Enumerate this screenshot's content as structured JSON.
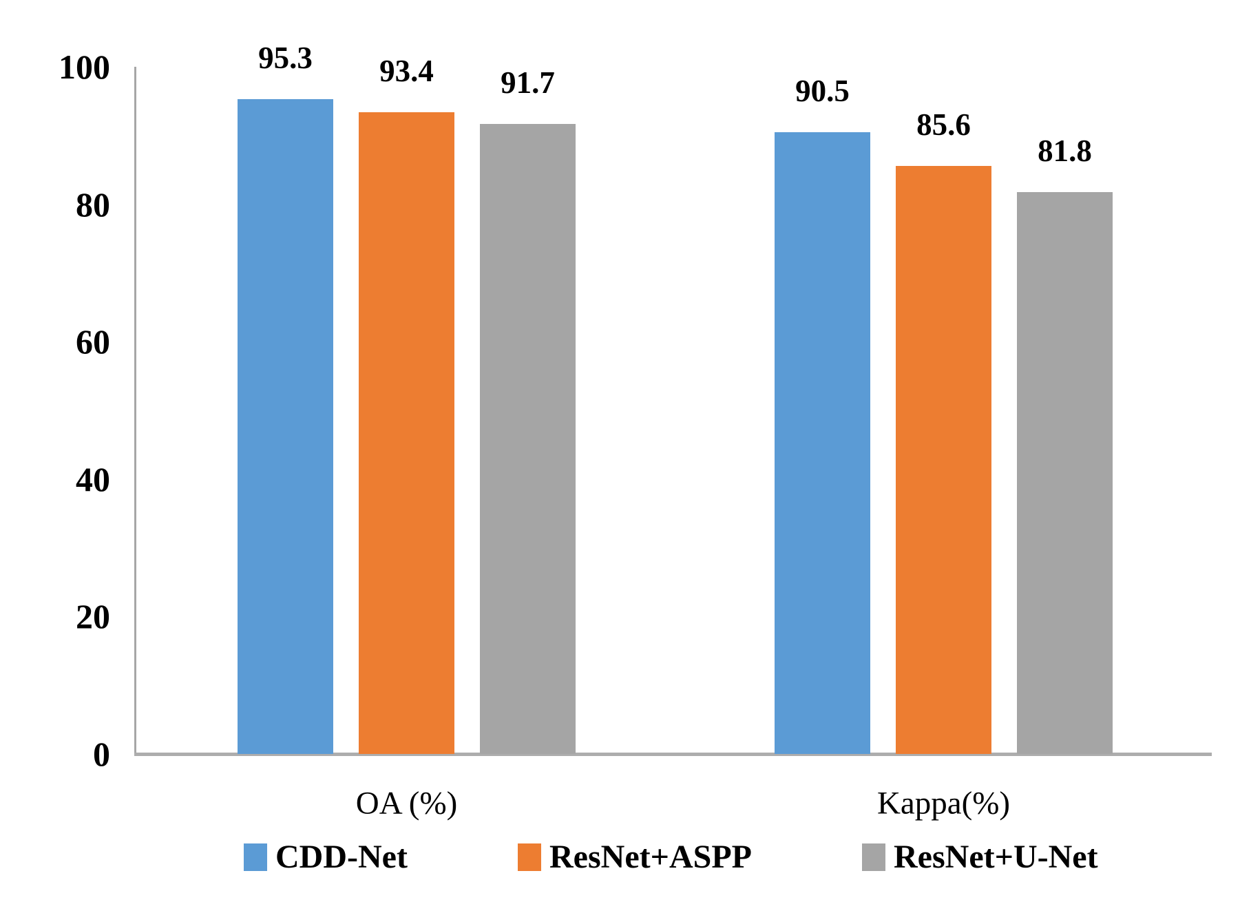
{
  "chart_data": {
    "type": "bar",
    "title": "",
    "categories": [
      "OA (%)",
      "Kappa(%)"
    ],
    "series": [
      {
        "name": "CDD-Net",
        "color": "#5B9BD5",
        "values": [
          95.3,
          90.5
        ],
        "labels": [
          "95.3",
          "90.5"
        ]
      },
      {
        "name": "ResNet+ASPP",
        "color": "#ED7D31",
        "values": [
          93.4,
          85.6
        ],
        "labels": [
          "93.4",
          "85.6"
        ]
      },
      {
        "name": "ResNet+U-Net",
        "color": "#A5A5A5",
        "values": [
          91.7,
          81.8
        ],
        "labels": [
          "91.7",
          "81.8"
        ]
      }
    ],
    "yticks": [
      100,
      80,
      60,
      40,
      20,
      0
    ],
    "ylim": [
      0,
      100
    ],
    "xlabel": "",
    "ylabel": "",
    "grid": false,
    "legend_position": "bottom",
    "axis_color": "#A6A6A6",
    "text_color": "#000000"
  }
}
